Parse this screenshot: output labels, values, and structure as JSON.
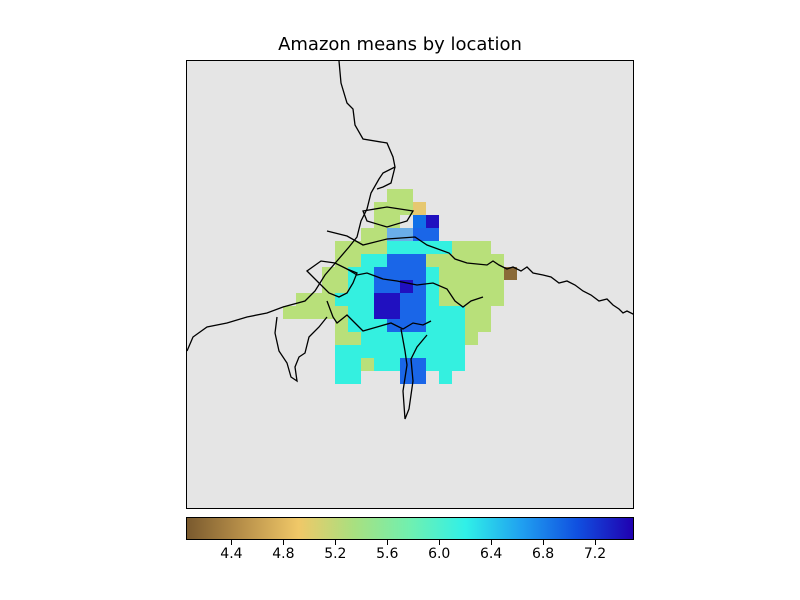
{
  "title": "Amazon means by location",
  "colorbar": {
    "ticks": [
      "4.4",
      "4.8",
      "5.2",
      "5.6",
      "6.0",
      "6.4",
      "6.8",
      "7.2"
    ],
    "tick_values": [
      4.4,
      4.8,
      5.2,
      5.6,
      6.0,
      6.4,
      6.8,
      7.2
    ],
    "range": [
      4.05,
      7.5
    ],
    "colors": [
      "#7a5a2e",
      "#b8904a",
      "#f0c868",
      "#a8e080",
      "#70f0b0",
      "#30f0e8",
      "#20a0f0",
      "#1050e0",
      "#2000b0"
    ]
  },
  "map": {
    "background": "#e5e5e5",
    "grid_rows": [
      "..........XX..........",
      ".........XXXY.........",
      ".........XX.ZW........",
      "........XXPPRR........",
      "......XXXXNNNNNXXX....",
      "......XXNNRRRXXXXXX...",
      ".....XXNNRRRRNXXXXXL..",
      ".....XXNNRRWRNXXXXX...",
      "...XXXNNNWWRRNXXXXX...",
      "..XXXXXNNWWRRNNNXX....",
      "......XNNNRRRNNNXX....",
      "......XXNNNNNNNNX.....",
      "......NNNNNNNNNN......",
      "......NNXNNRRNNN......",
      "......NN...RR.N......."
    ]
  }
}
